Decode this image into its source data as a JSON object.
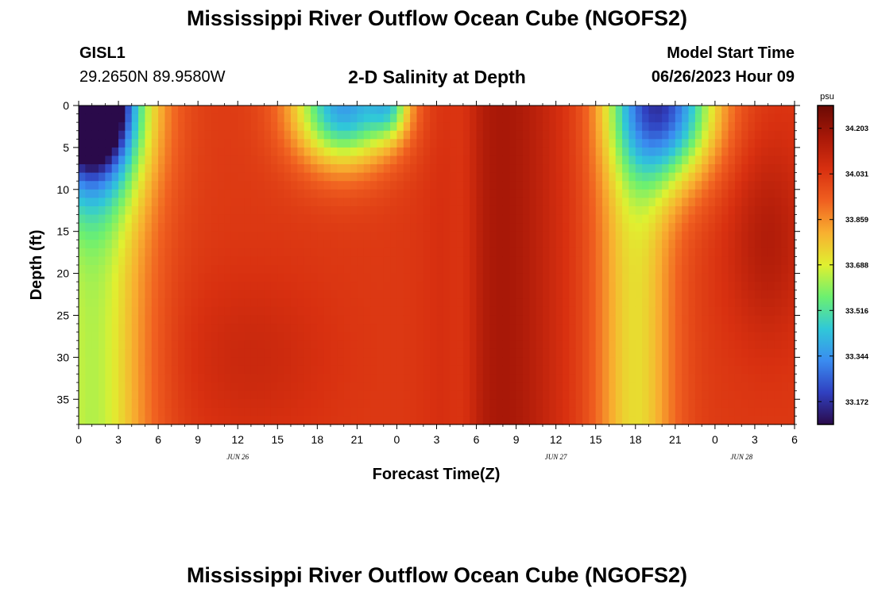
{
  "page": {
    "title_top": "Mississippi River Outflow Ocean Cube (NGOFS2)",
    "title_bottom": "Mississippi River Outflow Ocean Cube (NGOFS2)",
    "station_id": "GISL1",
    "station_coords": "29.2650N  89.9580W",
    "center_header": "2-D Salinity at Depth",
    "model_start_label": "Model Start Time",
    "model_start_value": "06/26/2023 Hour 09"
  },
  "chart_data": {
    "type": "heatmap",
    "title": "2-D Salinity at Depth",
    "xlabel": "Forecast Time(Z)",
    "ylabel": "Depth (ft)",
    "x_hours_range": [
      0,
      54
    ],
    "y_range": [
      0,
      38
    ],
    "y_inverted": true,
    "x_ticks": [
      "0",
      "3",
      "6",
      "9",
      "12",
      "15",
      "18",
      "21",
      "0",
      "3",
      "6",
      "9",
      "12",
      "15",
      "18",
      "21",
      "0",
      "3",
      "6"
    ],
    "y_ticks": [
      0,
      5,
      10,
      15,
      20,
      25,
      30,
      35
    ],
    "date_labels": [
      {
        "label": "JUN 26",
        "hour": 12
      },
      {
        "label": "JUN 27",
        "hour": 36
      },
      {
        "label": "JUN 28",
        "hour": 50
      }
    ],
    "colorbar": {
      "unit": "psu",
      "min": 33.086,
      "max": 34.289,
      "ticks": [
        "34.203",
        "34.031",
        "33.859",
        "33.688",
        "33.516",
        "33.344",
        "33.172"
      ],
      "colors": [
        "#2a0a4a",
        "#3040c0",
        "#3a8cf0",
        "#30c8d8",
        "#6cf070",
        "#e0f030",
        "#f8b030",
        "#f06020",
        "#d83010",
        "#a81808",
        "#6a0a04"
      ]
    },
    "grid": false
  }
}
